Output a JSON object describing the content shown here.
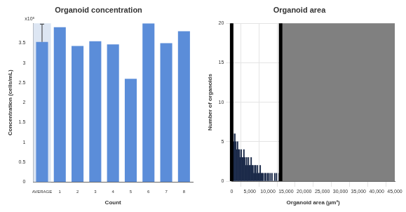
{
  "chart_data": [
    {
      "type": "bar",
      "title": "Organoid concentration",
      "x_label": "Count",
      "y_label": "Concentration (cells/mL)",
      "annotations": [
        "x10⁵"
      ],
      "categories": [
        "AVERAGE",
        "1",
        "2",
        "3",
        "4",
        "5",
        "6",
        "7",
        "8"
      ],
      "values": [
        3.53,
        3.9,
        3.43,
        3.55,
        3.47,
        2.6,
        4.0,
        3.5,
        3.8
      ],
      "errors": [
        0.45,
        null,
        null,
        null,
        null,
        null,
        null,
        null,
        null
      ],
      "color": "#5b8dd9",
      "ylim": [
        0,
        4
      ],
      "yticks": [
        0,
        0.5,
        1,
        1.5,
        2,
        2.5,
        3,
        3.5
      ],
      "grid": false
    },
    {
      "type": "histogram",
      "title": "Organoid area",
      "x_label": "Organoid area (µm²)",
      "y_label": "Number of organoids",
      "bins": [
        0,
        250,
        500,
        750,
        1000,
        1250,
        1500,
        1750,
        2000,
        2250,
        2500,
        2750,
        3000,
        3250,
        3500,
        3750,
        4000,
        4250,
        4500,
        4750,
        5000,
        5250,
        5500,
        5750,
        6000,
        6250,
        6500,
        6750,
        7000,
        7250,
        7500,
        7750,
        8000,
        8250,
        8500,
        8750,
        9000,
        9250,
        9500,
        9750,
        10000,
        10250,
        10500,
        10750,
        11000,
        11250,
        11500,
        11750,
        12000,
        12250,
        12500,
        12750,
        13000,
        13250,
        13500
      ],
      "values": [
        7,
        6,
        5,
        6,
        5,
        4,
        5,
        4,
        4,
        3,
        4,
        3,
        3,
        4,
        3,
        2,
        3,
        2,
        3,
        2,
        2,
        3,
        2,
        2,
        1,
        2,
        2,
        1,
        2,
        1,
        1,
        2,
        1,
        1,
        1,
        0,
        1,
        1,
        0,
        1,
        1,
        0,
        1,
        0,
        1,
        0,
        0,
        1,
        0,
        1,
        0,
        0,
        1,
        0
      ],
      "color": "#1c2b4a",
      "xlim": [
        0,
        45000
      ],
      "xticks": [
        0,
        {
          "value": 5000,
          "label": "5,000"
        },
        {
          "value": 10000,
          "label": "10,000"
        },
        {
          "value": 15000,
          "label": "15,000"
        },
        {
          "value": 20000,
          "label": "20,000"
        },
        {
          "value": 25000,
          "label": "25,000"
        },
        {
          "value": 30000,
          "label": "30,000"
        },
        {
          "value": 35000,
          "label": "35,000"
        },
        {
          "value": 40000,
          "label": "40,000"
        },
        {
          "value": 45000,
          "label": "45,000"
        }
      ],
      "ylim": [
        0,
        20
      ],
      "yticks": [
        0,
        5,
        10,
        15,
        20
      ],
      "grid": true,
      "gate": [
        0,
        13500
      ]
    }
  ]
}
